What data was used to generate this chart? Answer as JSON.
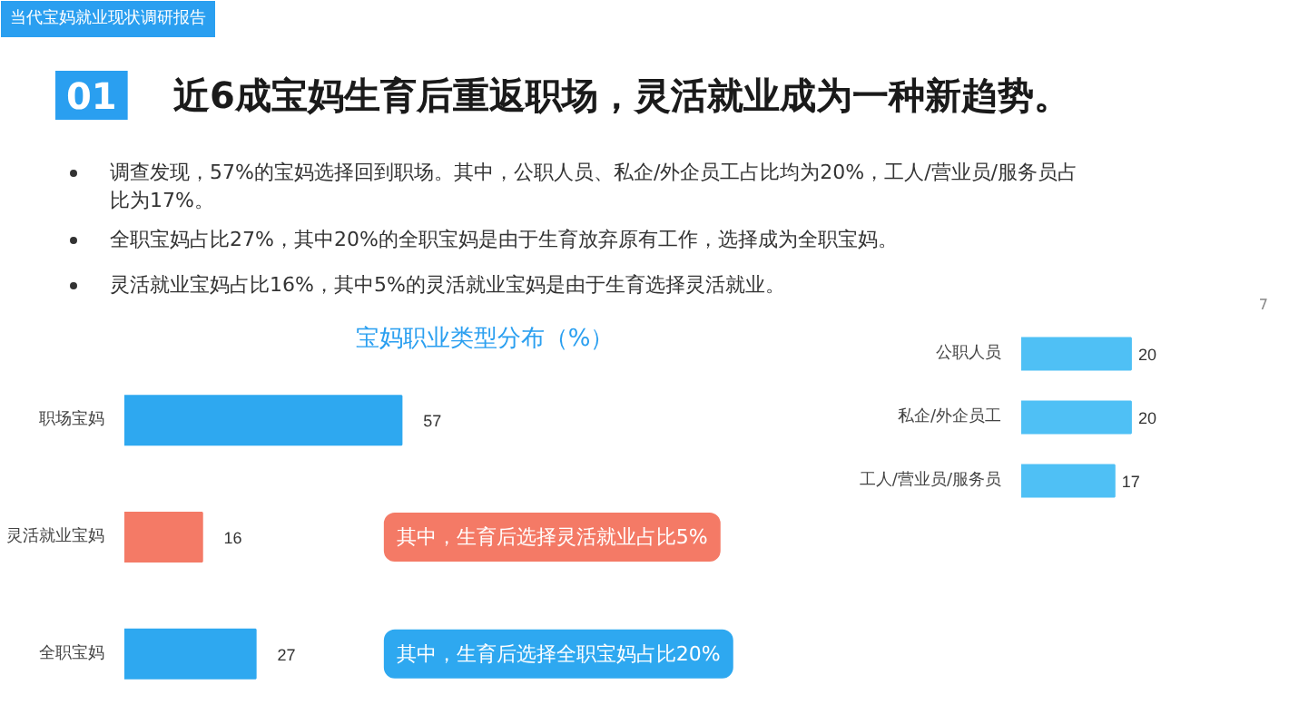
{
  "chart_data": [
    {
      "type": "other",
      "title": "近6成宝妈生育后重返职场，灵活就业成为一种新趋势。",
      "annotations": [
        "当代宝妈就业现状调研报告",
        "01",
        "调查发现，57%的宝妈选择回到职场。其中，公职人员、私企/外企员工占比均为20%，工人/营业员/服务员占比为17%。",
        "全职宝妈占比27%，其中20%的全职宝妈是由于生育放弃原有工作，选择成为全职宝妈。",
        "灵活就业宝妈占比16%，其中5%的灵活就业宝妈是由于生育选择灵活就业。",
        "7"
      ]
    },
    {
      "type": "bar",
      "orientation": "horizontal",
      "title": "宝妈职业类型分布（%）",
      "categories": [
        "职场宝妈",
        "灵活就业宝妈",
        "全职宝妈"
      ],
      "values": [
        57,
        16,
        27
      ],
      "colors": [
        "#2ea8f0",
        "#f47a66",
        "#2ea8f0"
      ],
      "data_labels": true,
      "tick_labels": "y",
      "grid": false,
      "annotations": [
        "其中，生育后选择灵活就业占比5%",
        "其中，生育后选择全职宝妈占比20%"
      ]
    },
    {
      "type": "bar",
      "orientation": "horizontal",
      "categories": [
        "公职人员",
        "私企/外企员工",
        "工人/营业员/服务员"
      ],
      "values": [
        20,
        20,
        17
      ],
      "color": "#4fc0f5",
      "data_labels": true,
      "tick_labels": "y",
      "grid": false
    }
  ]
}
